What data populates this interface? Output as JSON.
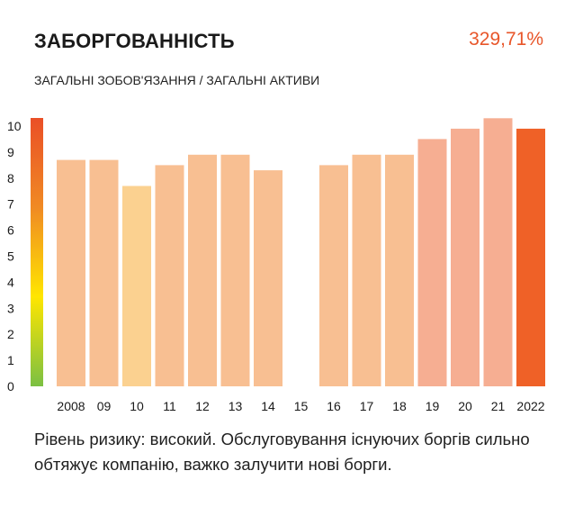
{
  "header": {
    "title": "ЗАБОРГОВАННІСТЬ",
    "value": "329,71%",
    "subtitle": "ЗАГАЛЬНІ ЗОБОВ'ЯЗАННЯ / ЗАГАЛЬНІ АКТИВИ"
  },
  "caption": "Рівень ризику: високий. Обслуговування існуючих боргів сильно обтяжує компанію, важко залучити нові борги.",
  "colors": {
    "accent": "#e8562a",
    "bar_light": "#f8bf92",
    "bar_yellow": "#fbd190",
    "bar_salmon": "#f6ae92",
    "bar_dark": "#ef6127"
  },
  "chart_data": {
    "type": "bar",
    "categories": [
      "2008",
      "09",
      "10",
      "11",
      "12",
      "13",
      "14",
      "15",
      "16",
      "17",
      "18",
      "19",
      "20",
      "21",
      "2022"
    ],
    "values": [
      8.7,
      8.7,
      7.7,
      8.5,
      8.9,
      8.9,
      8.3,
      null,
      8.5,
      8.9,
      8.9,
      9.5,
      9.9,
      10.3,
      9.9
    ],
    "bar_colors": [
      "#f8bf92",
      "#f8bf92",
      "#fbd190",
      "#f8bf92",
      "#f8bf92",
      "#f8bf92",
      "#f8bf92",
      "#f8bf92",
      "#f8bf92",
      "#f8bf92",
      "#f8bf92",
      "#f6ae92",
      "#f6ae92",
      "#f6ae92",
      "#ef6127"
    ],
    "ylim": [
      0,
      10
    ],
    "yticks": [
      "0",
      "1",
      "2",
      "3",
      "4",
      "5",
      "6",
      "7",
      "8",
      "9",
      "10"
    ],
    "scale_gradient": [
      "#7bc043",
      "#ffe600",
      "#f08a24",
      "#ea4f27"
    ],
    "grid": false,
    "title": "",
    "xlabel": "",
    "ylabel": ""
  }
}
